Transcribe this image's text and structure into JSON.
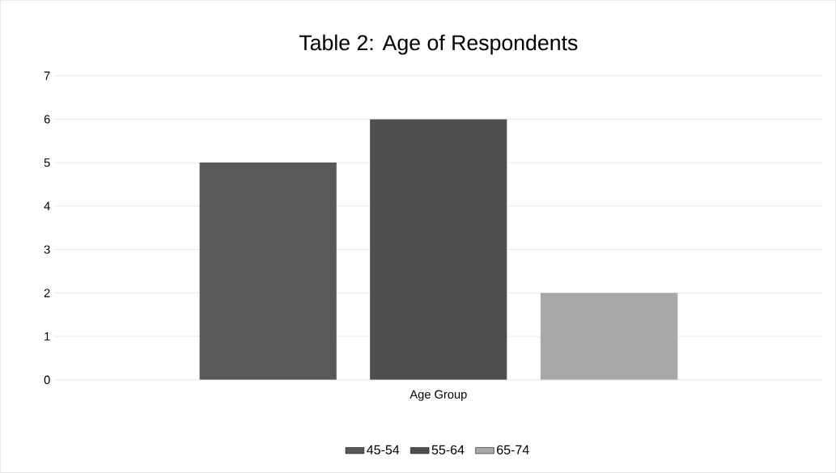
{
  "chart_data": {
    "type": "bar",
    "title": "Table 2: Age of Respondents",
    "categories": [
      "Age Group"
    ],
    "series": [
      {
        "name": "45-54",
        "color": "#595959",
        "values": [
          5
        ]
      },
      {
        "name": "55-64",
        "color": "#4f4f4f",
        "values": [
          6
        ]
      },
      {
        "name": "65-74",
        "color": "#a8a8a8",
        "values": [
          2
        ]
      }
    ],
    "ylim": [
      0,
      7
    ],
    "yticks": [
      0,
      1,
      2,
      3,
      4,
      5,
      6,
      7
    ],
    "grid": "y",
    "legend": "bottom"
  }
}
